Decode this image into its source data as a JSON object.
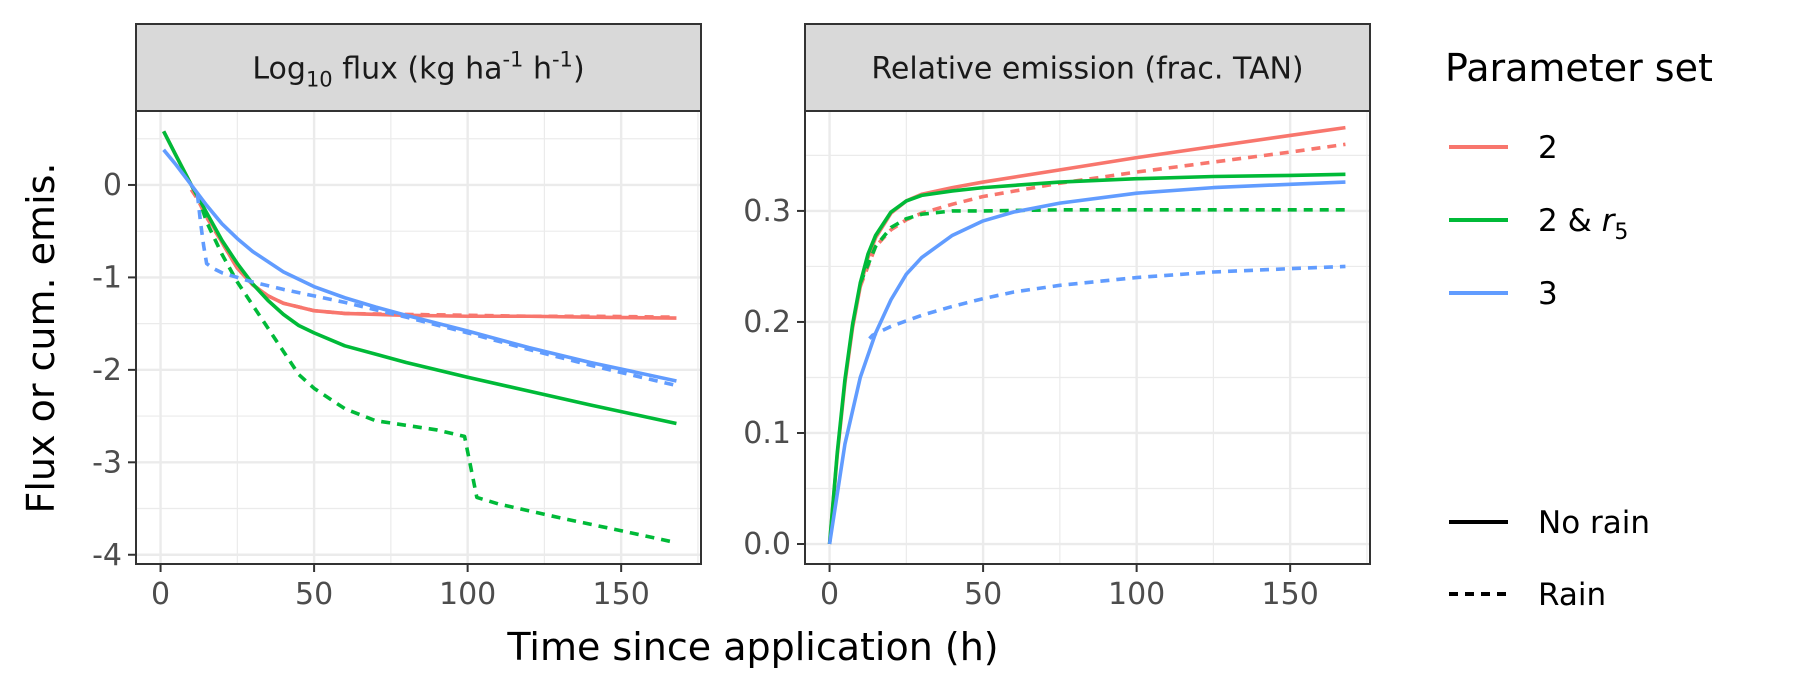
{
  "chart_data": {
    "type": "line",
    "ylabel": "Flux or cum. emis.",
    "xlabel": "Time since application (h)",
    "legend": {
      "title": "Parameter set",
      "position": "right",
      "colors": [
        {
          "key": "2",
          "label": "2",
          "color": "#F8766D"
        },
        {
          "key": "2r5",
          "label": "2 & r",
          "sub": "5",
          "color": "#00BA38"
        },
        {
          "key": "3",
          "label": "3",
          "color": "#619CFF"
        }
      ],
      "linetypes": [
        {
          "key": "no_rain",
          "label": "No rain",
          "dash": "solid"
        },
        {
          "key": "rain",
          "label": "Rain",
          "dash": "dashed"
        }
      ]
    },
    "panels": [
      {
        "id": "flux",
        "strip": {
          "main": "Log",
          "sub": "10",
          "rest": " flux (kg ha",
          "sup1": "-1",
          "mid": " h",
          "sup2": "-1",
          "end": ")"
        },
        "xlim": [
          -8,
          176
        ],
        "ylim": [
          -4.1,
          0.8
        ],
        "xticks": [
          0,
          50,
          100,
          150
        ],
        "xtick_labels": [
          "0",
          "50",
          "100",
          "150"
        ],
        "yticks": [
          0,
          -1,
          -2,
          -3,
          -4
        ],
        "ytick_labels": [
          "0",
          "-1",
          "-2",
          "-3",
          "-4"
        ],
        "grid": true,
        "series": [
          {
            "set": "2",
            "rain": false,
            "x": [
              1,
              5,
              10,
              15,
              20,
              25,
              30,
              35,
              40,
              50,
              60,
              80,
              100,
              120,
              140,
              168
            ],
            "y": [
              0.58,
              0.32,
              0.0,
              -0.32,
              -0.62,
              -0.9,
              -1.08,
              -1.2,
              -1.28,
              -1.36,
              -1.39,
              -1.41,
              -1.42,
              -1.42,
              -1.43,
              -1.44
            ]
          },
          {
            "set": "2",
            "rain": true,
            "x": [
              10,
              12,
              15,
              20,
              25,
              30,
              35,
              40,
              50,
              60,
              80,
              100,
              120,
              140,
              168
            ],
            "y": [
              -0.05,
              -0.15,
              -0.35,
              -0.62,
              -0.9,
              -1.08,
              -1.2,
              -1.28,
              -1.36,
              -1.39,
              -1.4,
              -1.41,
              -1.42,
              -1.42,
              -1.43
            ]
          },
          {
            "set": "2r5",
            "rain": false,
            "x": [
              1,
              5,
              10,
              15,
              20,
              25,
              30,
              35,
              40,
              45,
              50,
              60,
              80,
              100,
              120,
              140,
              168
            ],
            "y": [
              0.58,
              0.32,
              0.0,
              -0.3,
              -0.6,
              -0.85,
              -1.07,
              -1.25,
              -1.4,
              -1.52,
              -1.6,
              -1.74,
              -1.92,
              -2.08,
              -2.23,
              -2.38,
              -2.58
            ]
          },
          {
            "set": "2r5",
            "rain": true,
            "x": [
              12,
              15,
              20,
              25,
              30,
              35,
              40,
              45,
              50,
              60,
              70,
              80,
              90,
              99,
              103,
              110,
              130,
              150,
              168
            ],
            "y": [
              -0.1,
              -0.4,
              -0.75,
              -1.05,
              -1.3,
              -1.55,
              -1.8,
              -2.05,
              -2.2,
              -2.42,
              -2.55,
              -2.6,
              -2.65,
              -2.72,
              -3.38,
              -3.45,
              -3.6,
              -3.74,
              -3.87
            ]
          },
          {
            "set": "3",
            "rain": false,
            "x": [
              1,
              5,
              10,
              15,
              20,
              25,
              30,
              40,
              50,
              60,
              70,
              80,
              100,
              120,
              140,
              168
            ],
            "y": [
              0.38,
              0.22,
              0.0,
              -0.22,
              -0.42,
              -0.58,
              -0.72,
              -0.94,
              -1.1,
              -1.22,
              -1.32,
              -1.41,
              -1.58,
              -1.76,
              -1.92,
              -2.12
            ]
          },
          {
            "set": "3",
            "rain": true,
            "x": [
              12,
              13,
              14,
              15,
              17,
              20,
              30,
              40,
              50,
              60,
              80,
              100,
              120,
              140,
              168
            ],
            "y": [
              -0.1,
              -0.4,
              -0.65,
              -0.85,
              -0.9,
              -0.95,
              -1.05,
              -1.13,
              -1.2,
              -1.27,
              -1.43,
              -1.6,
              -1.78,
              -1.95,
              -2.17
            ]
          }
        ]
      },
      {
        "id": "relative",
        "strip": {
          "main": "Relative emission (frac. TAN)"
        },
        "xlim": [
          -8,
          176
        ],
        "ylim": [
          -0.018,
          0.39
        ],
        "xticks": [
          0,
          50,
          100,
          150
        ],
        "xtick_labels": [
          "0",
          "50",
          "100",
          "150"
        ],
        "yticks": [
          0,
          0.1,
          0.2,
          0.3
        ],
        "ytick_labels": [
          "0.0",
          "0.1",
          "0.2",
          "0.3"
        ],
        "grid": true,
        "series": [
          {
            "set": "2",
            "rain": false,
            "x": [
              0,
              2.5,
              5,
              7.5,
              10,
              12.5,
              15,
              20,
              25,
              30,
              40,
              50,
              75,
              100,
              125,
              150,
              168
            ],
            "y": [
              0,
              0.08,
              0.145,
              0.195,
              0.232,
              0.258,
              0.276,
              0.298,
              0.309,
              0.315,
              0.321,
              0.326,
              0.337,
              0.348,
              0.358,
              0.368,
              0.375
            ]
          },
          {
            "set": "2",
            "rain": true,
            "x": [
              10,
              15,
              20,
              25,
              30,
              40,
              50,
              75,
              100,
              125,
              150,
              168
            ],
            "y": [
              0.232,
              0.268,
              0.283,
              0.292,
              0.298,
              0.306,
              0.313,
              0.325,
              0.335,
              0.344,
              0.353,
              0.36
            ]
          },
          {
            "set": "2r5",
            "rain": false,
            "x": [
              0,
              2.5,
              5,
              7.5,
              10,
              12.5,
              15,
              20,
              25,
              30,
              40,
              50,
              75,
              100,
              125,
              150,
              168
            ],
            "y": [
              0,
              0.082,
              0.148,
              0.198,
              0.235,
              0.261,
              0.278,
              0.299,
              0.309,
              0.314,
              0.318,
              0.321,
              0.326,
              0.329,
              0.331,
              0.332,
              0.333
            ]
          },
          {
            "set": "2r5",
            "rain": true,
            "x": [
              10,
              15,
              20,
              25,
              30,
              40,
              50,
              75,
              100,
              125,
              150,
              168
            ],
            "y": [
              0.235,
              0.268,
              0.285,
              0.293,
              0.297,
              0.3,
              0.3,
              0.301,
              0.301,
              0.301,
              0.301,
              0.301
            ]
          },
          {
            "set": "3",
            "rain": false,
            "x": [
              0,
              5,
              10,
              15,
              20,
              25,
              30,
              40,
              50,
              60,
              75,
              100,
              125,
              150,
              168
            ],
            "y": [
              0,
              0.09,
              0.15,
              0.19,
              0.22,
              0.243,
              0.258,
              0.278,
              0.291,
              0.299,
              0.307,
              0.316,
              0.321,
              0.324,
              0.326
            ]
          },
          {
            "set": "3",
            "rain": true,
            "x": [
              13,
              14,
              20,
              30,
              40,
              50,
              60,
              75,
              100,
              125,
              150,
              168
            ],
            "y": [
              0.185,
              0.188,
              0.196,
              0.206,
              0.214,
              0.221,
              0.227,
              0.233,
              0.24,
              0.245,
              0.248,
              0.25
            ]
          }
        ]
      }
    ]
  }
}
